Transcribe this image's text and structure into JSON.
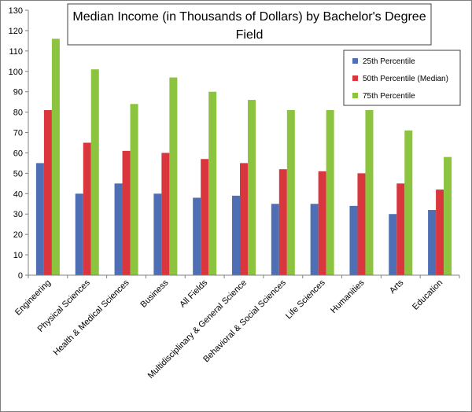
{
  "chart_data": {
    "type": "bar",
    "title_lines": [
      "Median Income (in Thousands of Dollars) by Bachelor's Degree",
      "Field"
    ],
    "xlabel": "",
    "ylabel": "",
    "ylim": [
      0,
      130
    ],
    "yticks": [
      0,
      10,
      20,
      30,
      40,
      50,
      60,
      70,
      80,
      90,
      100,
      110,
      120,
      130
    ],
    "grid": false,
    "legend_position": "top-right",
    "categories": [
      "Engineering",
      "Physical Sciences",
      "Health & Medical Sciences",
      "Business",
      "All Fields",
      "Multidisciplinary & General Science",
      "Behavioral & Social Sciences",
      "Life Sciences",
      "Humanities",
      "Arts",
      "Education"
    ],
    "series": [
      {
        "name": "25th Percentile",
        "color": "#4f6fb4",
        "values": [
          55,
          40,
          45,
          40,
          38,
          39,
          35,
          35,
          34,
          30,
          32
        ]
      },
      {
        "name": "50th Percentile (Median)",
        "color": "#d9363e",
        "values": [
          81,
          65,
          61,
          60,
          57,
          55,
          52,
          51,
          50,
          45,
          42
        ]
      },
      {
        "name": "75th Percentile",
        "color": "#8cc43f",
        "values": [
          116,
          101,
          84,
          97,
          90,
          86,
          81,
          81,
          81,
          71,
          58
        ]
      }
    ]
  }
}
